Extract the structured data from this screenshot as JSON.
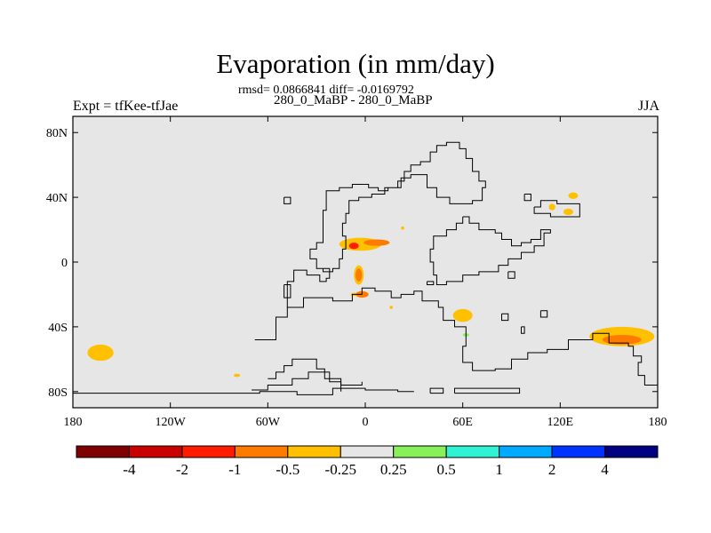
{
  "title": "Evaporation (in mm/day)",
  "stats": "rmsd= 0.0866841 diff= -0.0169792",
  "subtitle": "280_0_MaBP - 280_0_MaBP",
  "left_label": "Expt = tfKee-tfJae",
  "right_label": "JJA",
  "chart_data": {
    "type": "heatmap",
    "title": "Evaporation (in mm/day)",
    "projection": "cylindrical equidistant",
    "xlim": [
      -180,
      180
    ],
    "ylim": [
      -90,
      90
    ],
    "x_ticks": [
      {
        "value": -180,
        "label": "180"
      },
      {
        "value": -120,
        "label": "120W"
      },
      {
        "value": -60,
        "label": "60W"
      },
      {
        "value": 0,
        "label": "0"
      },
      {
        "value": 60,
        "label": "60E"
      },
      {
        "value": 120,
        "label": "120E"
      },
      {
        "value": 180,
        "label": "180"
      }
    ],
    "y_ticks": [
      {
        "value": 80,
        "label": "80N"
      },
      {
        "value": 40,
        "label": "40N"
      },
      {
        "value": 0,
        "label": "0"
      },
      {
        "value": -40,
        "label": "40S"
      },
      {
        "value": -80,
        "label": "80S"
      }
    ],
    "background_color": "#e6e6e6",
    "colorbar": {
      "colors": [
        "#7f0000",
        "#c80000",
        "#ff1c00",
        "#ff7b00",
        "#ffc000",
        "#e6e6e6",
        "#88f15a",
        "#30f2d4",
        "#00aaff",
        "#0033ff",
        "#000080"
      ],
      "labels": [
        "-4",
        "-2",
        "-1",
        "-0.5",
        "-0.25",
        "0.25",
        "0.5",
        "1",
        "2",
        "4"
      ]
    },
    "anomaly_regions": [
      {
        "lon": -163,
        "lat": -56,
        "rlon": 8,
        "rlat": 5,
        "color": "#ffc000"
      },
      {
        "lon": -79,
        "lat": -70,
        "rlon": 2,
        "rlat": 1,
        "color": "#ffc000"
      },
      {
        "lon": -3,
        "lat": 11,
        "rlon": 13,
        "rlat": 4,
        "color": "#ffc000"
      },
      {
        "lon": 7,
        "lat": 12,
        "rlon": 8,
        "rlat": 2,
        "color": "#ff7b00"
      },
      {
        "lon": -7,
        "lat": 10,
        "rlon": 3,
        "rlat": 2,
        "color": "#ff1c00"
      },
      {
        "lon": -4,
        "lat": -8,
        "rlon": 3,
        "rlat": 6,
        "color": "#ffc000"
      },
      {
        "lon": -4,
        "lat": -8,
        "rlon": 2,
        "rlat": 4,
        "color": "#ff7b00"
      },
      {
        "lon": -2,
        "lat": -20,
        "rlon": 4,
        "rlat": 2,
        "color": "#ff7b00"
      },
      {
        "lon": -7,
        "lat": -20,
        "rlon": 2,
        "rlat": 1,
        "color": "#ffc000"
      },
      {
        "lon": 60,
        "lat": -33,
        "rlon": 6,
        "rlat": 4,
        "color": "#ffc000"
      },
      {
        "lon": 62,
        "lat": -45,
        "rlon": 2,
        "rlat": 1,
        "color": "#88f15a"
      },
      {
        "lon": 158,
        "lat": -46,
        "rlon": 20,
        "rlat": 6,
        "color": "#ffc000"
      },
      {
        "lon": 158,
        "lat": -48,
        "rlon": 12,
        "rlat": 3,
        "color": "#ff7b00"
      },
      {
        "lon": 115,
        "lat": 34,
        "rlon": 2,
        "rlat": 2,
        "color": "#ffc000"
      },
      {
        "lon": 125,
        "lat": 31,
        "rlon": 3,
        "rlat": 2,
        "color": "#ffc000"
      },
      {
        "lon": 128,
        "lat": 41,
        "rlon": 3,
        "rlat": 2,
        "color": "#ffc000"
      },
      {
        "lon": 23,
        "lat": 21,
        "rlon": 1,
        "rlat": 1,
        "color": "#ffc000"
      },
      {
        "lon": 16,
        "lat": -28,
        "rlon": 1,
        "rlat": 1,
        "color": "#ffc000"
      }
    ],
    "coastlines": [
      [
        [
          -180,
          -81
        ],
        [
          -80,
          -81
        ],
        [
          -65,
          -80
        ],
        [
          -42,
          -82
        ],
        [
          -20,
          -78
        ],
        [
          0,
          -79
        ],
        [
          20,
          -80
        ],
        [
          30,
          -80
        ]
      ],
      [
        [
          -60,
          -72
        ],
        [
          -55,
          -68
        ],
        [
          -50,
          -64
        ],
        [
          -45,
          -60
        ],
        [
          -35,
          -60
        ],
        [
          -30,
          -66
        ],
        [
          -25,
          -72
        ],
        [
          -15,
          -76
        ],
        [
          -5,
          -76
        ],
        [
          -2,
          -74
        ]
      ],
      [
        [
          -70,
          -79
        ],
        [
          -60,
          -76
        ],
        [
          -45,
          -72
        ],
        [
          -35,
          -68
        ],
        [
          -22,
          -74
        ],
        [
          -15,
          -80
        ]
      ],
      [
        [
          40,
          -81
        ],
        [
          48,
          -81
        ],
        [
          48,
          -78
        ],
        [
          40,
          -78
        ],
        [
          40,
          -81
        ]
      ],
      [
        [
          55,
          -81
        ],
        [
          95,
          -81
        ],
        [
          95,
          -78
        ],
        [
          55,
          -78
        ],
        [
          55,
          -81
        ]
      ],
      [
        [
          -68,
          -48
        ],
        [
          -55,
          -34
        ],
        [
          -48,
          -28
        ],
        [
          -38,
          -22
        ],
        [
          -20,
          -24
        ],
        [
          -8,
          -20
        ],
        [
          -2,
          -16
        ],
        [
          6,
          -18
        ],
        [
          16,
          -22
        ],
        [
          22,
          -20
        ],
        [
          30,
          -18
        ],
        [
          35,
          -24
        ],
        [
          45,
          -28
        ],
        [
          48,
          -36
        ],
        [
          55,
          -40
        ],
        [
          62,
          -52
        ],
        [
          60,
          -62
        ],
        [
          66,
          -67
        ],
        [
          80,
          -66
        ],
        [
          90,
          -60
        ],
        [
          100,
          -56
        ],
        [
          112,
          -54
        ],
        [
          125,
          -48
        ],
        [
          140,
          -44
        ],
        [
          150,
          -50
        ],
        [
          162,
          -52
        ],
        [
          165,
          -58
        ],
        [
          170,
          -62
        ],
        [
          168,
          -70
        ],
        [
          172,
          -76
        ],
        [
          180,
          -79
        ]
      ],
      [
        [
          -48,
          -28
        ],
        [
          -48,
          -12
        ],
        [
          -44,
          -5
        ],
        [
          -36,
          -8
        ],
        [
          -28,
          -12
        ],
        [
          -24,
          -10
        ],
        [
          -22,
          -4
        ],
        [
          -30,
          2
        ],
        [
          -34,
          8
        ],
        [
          -30,
          12
        ],
        [
          -26,
          22
        ],
        [
          -26,
          32
        ],
        [
          -24,
          44
        ],
        [
          -16,
          46
        ],
        [
          -8,
          48
        ],
        [
          2,
          46
        ],
        [
          8,
          44
        ],
        [
          14,
          46
        ],
        [
          20,
          50
        ],
        [
          24,
          56
        ],
        [
          28,
          60
        ],
        [
          34,
          62
        ],
        [
          40,
          68
        ],
        [
          44,
          72
        ],
        [
          50,
          74
        ],
        [
          58,
          70
        ],
        [
          62,
          64
        ],
        [
          66,
          56
        ],
        [
          70,
          50
        ],
        [
          74,
          46
        ],
        [
          72,
          38
        ],
        [
          66,
          36
        ],
        [
          58,
          36
        ],
        [
          52,
          40
        ],
        [
          44,
          46
        ],
        [
          38,
          54
        ],
        [
          28,
          52
        ],
        [
          22,
          46
        ],
        [
          12,
          42
        ],
        [
          4,
          40
        ],
        [
          -4,
          38
        ],
        [
          -10,
          30
        ],
        [
          -12,
          24
        ],
        [
          -14,
          16
        ],
        [
          -12,
          8
        ],
        [
          -14,
          2
        ],
        [
          -16,
          -4
        ],
        [
          -20,
          -6
        ],
        [
          -26,
          -4
        ]
      ],
      [
        [
          60,
          28
        ],
        [
          64,
          24
        ],
        [
          70,
          20
        ],
        [
          76,
          20
        ],
        [
          80,
          18
        ],
        [
          84,
          14
        ],
        [
          90,
          10
        ],
        [
          96,
          12
        ],
        [
          102,
          14
        ],
        [
          108,
          20
        ],
        [
          114,
          18
        ],
        [
          110,
          10
        ],
        [
          104,
          6
        ],
        [
          96,
          2
        ],
        [
          88,
          -2
        ],
        [
          82,
          -6
        ],
        [
          70,
          -8
        ],
        [
          60,
          -12
        ],
        [
          50,
          -14
        ],
        [
          44,
          -8
        ],
        [
          42,
          0
        ],
        [
          40,
          8
        ],
        [
          42,
          16
        ],
        [
          50,
          20
        ],
        [
          56,
          24
        ],
        [
          60,
          28
        ]
      ],
      [
        [
          104,
          34
        ],
        [
          108,
          38
        ],
        [
          118,
          36
        ],
        [
          126,
          36
        ],
        [
          132,
          32
        ],
        [
          132,
          28
        ],
        [
          126,
          28
        ],
        [
          120,
          28
        ],
        [
          114,
          30
        ],
        [
          108,
          30
        ],
        [
          104,
          34
        ]
      ],
      [
        [
          -50,
          40
        ],
        [
          -46,
          40
        ],
        [
          -46,
          36
        ],
        [
          -50,
          36
        ],
        [
          -50,
          40
        ]
      ],
      [
        [
          -50,
          -14
        ],
        [
          -46,
          -14
        ],
        [
          -46,
          -22
        ],
        [
          -50,
          -22
        ],
        [
          -50,
          -14
        ]
      ],
      [
        [
          88,
          -6
        ],
        [
          92,
          -6
        ],
        [
          92,
          -10
        ],
        [
          88,
          -10
        ],
        [
          88,
          -6
        ]
      ],
      [
        [
          98,
          42
        ],
        [
          102,
          42
        ],
        [
          102,
          38
        ],
        [
          98,
          38
        ],
        [
          98,
          42
        ]
      ],
      [
        [
          108,
          -30
        ],
        [
          112,
          -30
        ],
        [
          112,
          -34
        ],
        [
          108,
          -34
        ],
        [
          108,
          -30
        ]
      ],
      [
        [
          84,
          -32
        ],
        [
          88,
          -32
        ],
        [
          88,
          -36
        ],
        [
          84,
          -36
        ],
        [
          84,
          -32
        ]
      ],
      [
        [
          38,
          -12
        ],
        [
          42,
          -12
        ],
        [
          42,
          -14
        ],
        [
          38,
          -14
        ],
        [
          38,
          -12
        ]
      ],
      [
        [
          96,
          -40
        ],
        [
          98,
          -40
        ],
        [
          98,
          -44
        ],
        [
          96,
          -44
        ],
        [
          96,
          -40
        ]
      ]
    ]
  }
}
